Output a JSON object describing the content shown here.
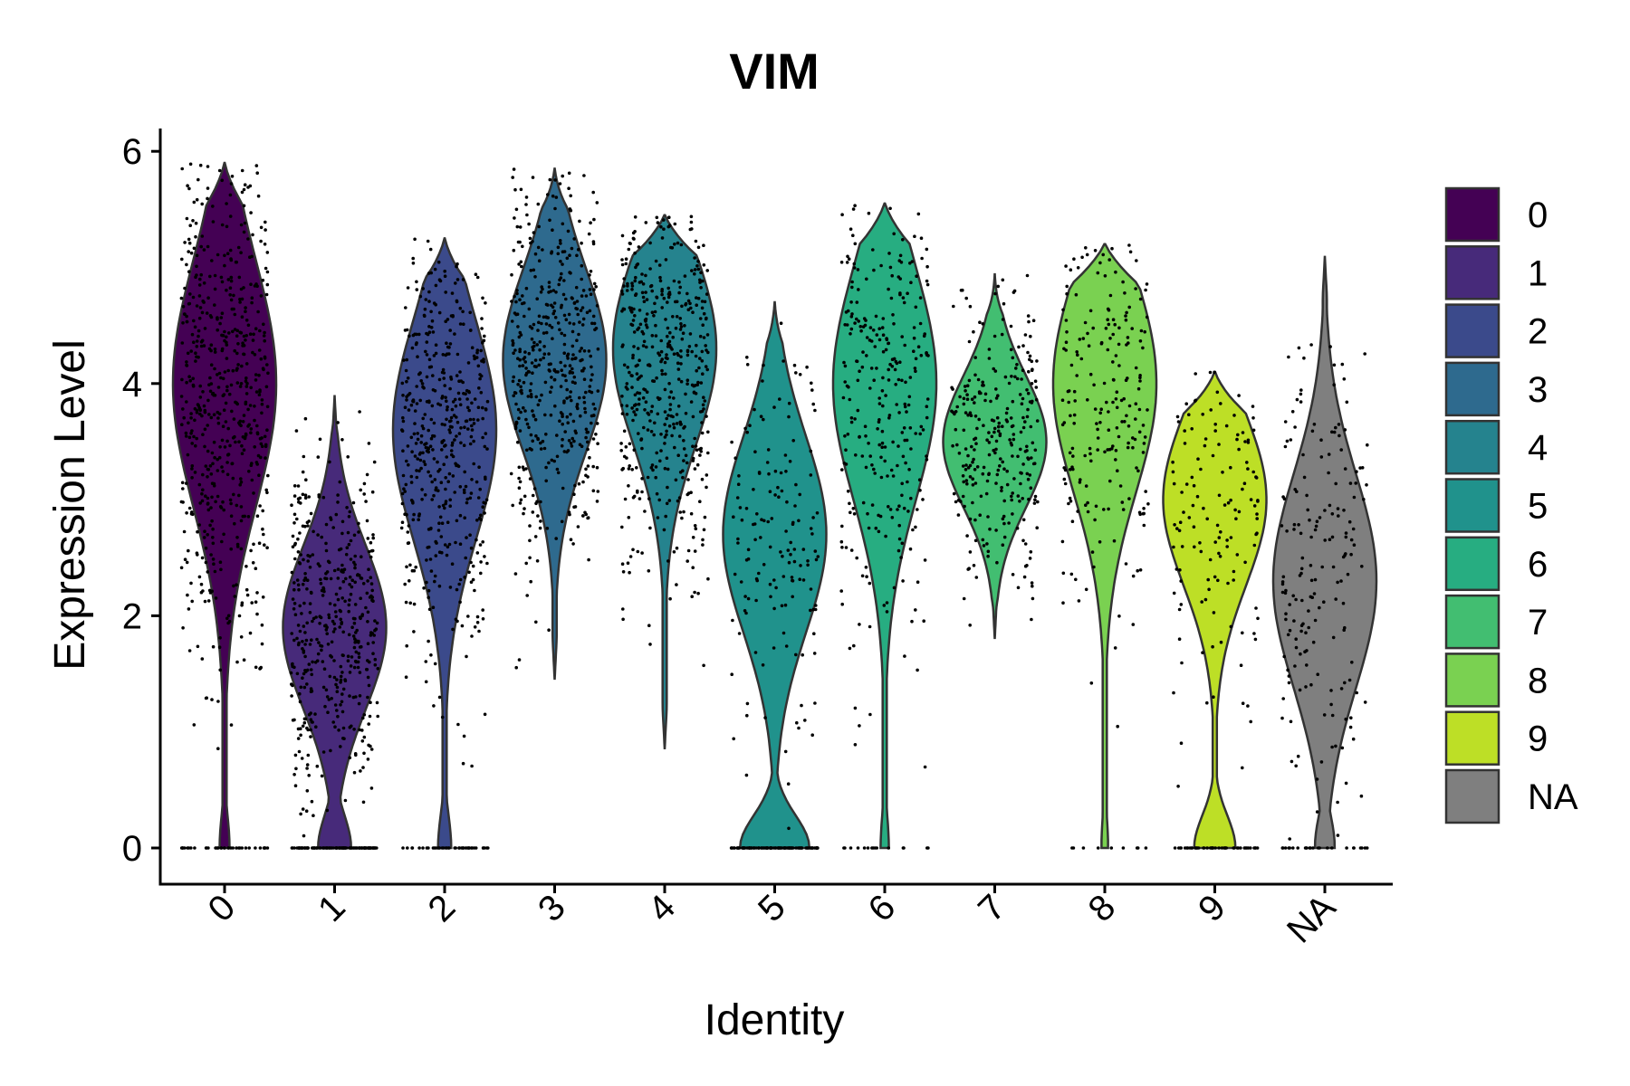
{
  "chart_data": {
    "type": "violin",
    "title": "VIM",
    "xlabel": "Identity",
    "ylabel": "Expression Level",
    "ylim": [
      -0.55,
      6.2
    ],
    "yticks": [
      0,
      2,
      4,
      6
    ],
    "categories": [
      "0",
      "1",
      "2",
      "3",
      "4",
      "5",
      "6",
      "7",
      "8",
      "9",
      "NA"
    ],
    "colors": [
      "#440154",
      "#482878",
      "#3E4989",
      "#31688E",
      "#26828E",
      "#1F9E89",
      "#35B779",
      "#6ECE58",
      "#B5DE2B",
      "#FDE725",
      "#808080"
    ],
    "fill_colors": [
      "#440154",
      "#472A7A",
      "#3B4A8B",
      "#2E6A8E",
      "#25838E",
      "#20928C",
      "#27AD81",
      "#42BE71",
      "#7AD151",
      "#BDDF26",
      "#7F7F7F"
    ],
    "legend": {
      "position": "right",
      "entries": [
        "0",
        "1",
        "2",
        "3",
        "4",
        "5",
        "6",
        "7",
        "8",
        "9",
        "NA"
      ]
    },
    "grid": false,
    "series": [
      {
        "category": "0",
        "max": 5.9,
        "min": 0,
        "mode": 4.0,
        "zero_fraction": 0.06,
        "n_points": 620
      },
      {
        "category": "1",
        "max": 3.9,
        "min": 0,
        "mode": 1.9,
        "zero_fraction": 0.2,
        "n_points": 560
      },
      {
        "category": "2",
        "max": 5.25,
        "min": 0,
        "mode": 3.6,
        "zero_fraction": 0.08,
        "n_points": 520
      },
      {
        "category": "3",
        "max": 5.85,
        "min": 1.45,
        "mode": 4.2,
        "zero_fraction": 0.0,
        "n_points": 480
      },
      {
        "category": "4",
        "max": 5.45,
        "min": 0.85,
        "mode": 4.3,
        "zero_fraction": 0.0,
        "n_points": 480
      },
      {
        "category": "5",
        "max": 4.7,
        "min": 0,
        "mode": 2.7,
        "zero_fraction": 0.42,
        "n_points": 260
      },
      {
        "category": "6",
        "max": 5.55,
        "min": 0,
        "mode": 4.0,
        "zero_fraction": 0.05,
        "n_points": 300
      },
      {
        "category": "7",
        "max": 4.95,
        "min": 1.8,
        "mode": 3.5,
        "zero_fraction": 0.0,
        "n_points": 280
      },
      {
        "category": "8",
        "max": 5.2,
        "min": 0,
        "mode": 4.0,
        "zero_fraction": 0.04,
        "n_points": 220
      },
      {
        "category": "9",
        "max": 4.1,
        "min": 0,
        "mode": 3.0,
        "zero_fraction": 0.25,
        "n_points": 180
      },
      {
        "category": "NA",
        "max": 5.1,
        "min": 0,
        "mode": 2.3,
        "zero_fraction": 0.12,
        "n_points": 200
      }
    ]
  }
}
